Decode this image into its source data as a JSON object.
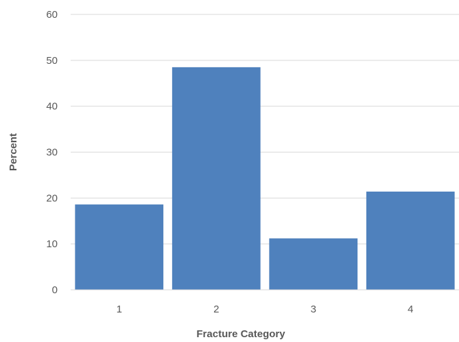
{
  "chart_data": {
    "type": "bar",
    "categories": [
      "1",
      "2",
      "3",
      "4"
    ],
    "values": [
      18.6,
      48.5,
      11.2,
      21.4
    ],
    "title": "",
    "xlabel": "Fracture Category",
    "ylabel": "Percent",
    "ylim": [
      0,
      60
    ],
    "yticks": [
      "0",
      "10",
      "20",
      "30",
      "40",
      "50",
      "60"
    ],
    "grid": true,
    "legend": "none",
    "bar_color": "#4f81bd"
  }
}
